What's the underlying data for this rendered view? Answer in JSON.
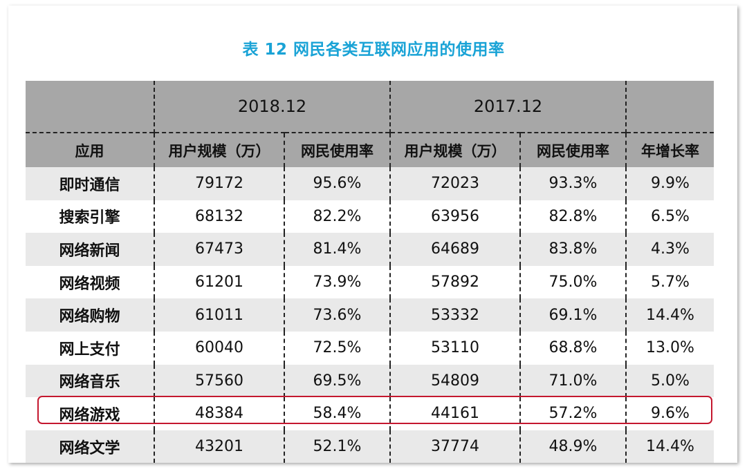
{
  "title": "表 12  网民各类互联网应用的使用率",
  "header": {
    "year_a": "2018.12",
    "year_b": "2017.12",
    "columns": [
      "应用",
      "用户规模（万）",
      "网民使用率",
      "用户规模（万）",
      "网民使用率",
      "年增长率"
    ]
  },
  "rows": [
    {
      "app": "即时通信",
      "users_2018": "79172",
      "rate_2018": "95.6%",
      "users_2017": "72023",
      "rate_2017": "93.3%",
      "growth": "9.9%"
    },
    {
      "app": "搜索引擎",
      "users_2018": "68132",
      "rate_2018": "82.2%",
      "users_2017": "63956",
      "rate_2017": "82.8%",
      "growth": "6.5%"
    },
    {
      "app": "网络新闻",
      "users_2018": "67473",
      "rate_2018": "81.4%",
      "users_2017": "64689",
      "rate_2017": "83.8%",
      "growth": "4.3%"
    },
    {
      "app": "网络视频",
      "users_2018": "61201",
      "rate_2018": "73.9%",
      "users_2017": "57892",
      "rate_2017": "75.0%",
      "growth": "5.7%"
    },
    {
      "app": "网络购物",
      "users_2018": "61011",
      "rate_2018": "73.6%",
      "users_2017": "53332",
      "rate_2017": "69.1%",
      "growth": "14.4%"
    },
    {
      "app": "网上支付",
      "users_2018": "60040",
      "rate_2018": "72.5%",
      "users_2017": "53110",
      "rate_2017": "68.8%",
      "growth": "13.0%"
    },
    {
      "app": "网络音乐",
      "users_2018": "57560",
      "rate_2018": "69.5%",
      "users_2017": "54809",
      "rate_2017": "71.0%",
      "growth": "5.0%"
    },
    {
      "app": "网络游戏",
      "users_2018": "48384",
      "rate_2018": "58.4%",
      "users_2017": "44161",
      "rate_2017": "57.2%",
      "growth": "9.6%"
    },
    {
      "app": "网络文学",
      "users_2018": "43201",
      "rate_2018": "52.1%",
      "users_2017": "37774",
      "rate_2017": "48.9%",
      "growth": "14.4%"
    }
  ],
  "colors": {
    "title": "#1aa3d6",
    "header_bg": "#a7a7a7",
    "row_shade": "#e9e9e9",
    "highlight": "#c4172e"
  }
}
